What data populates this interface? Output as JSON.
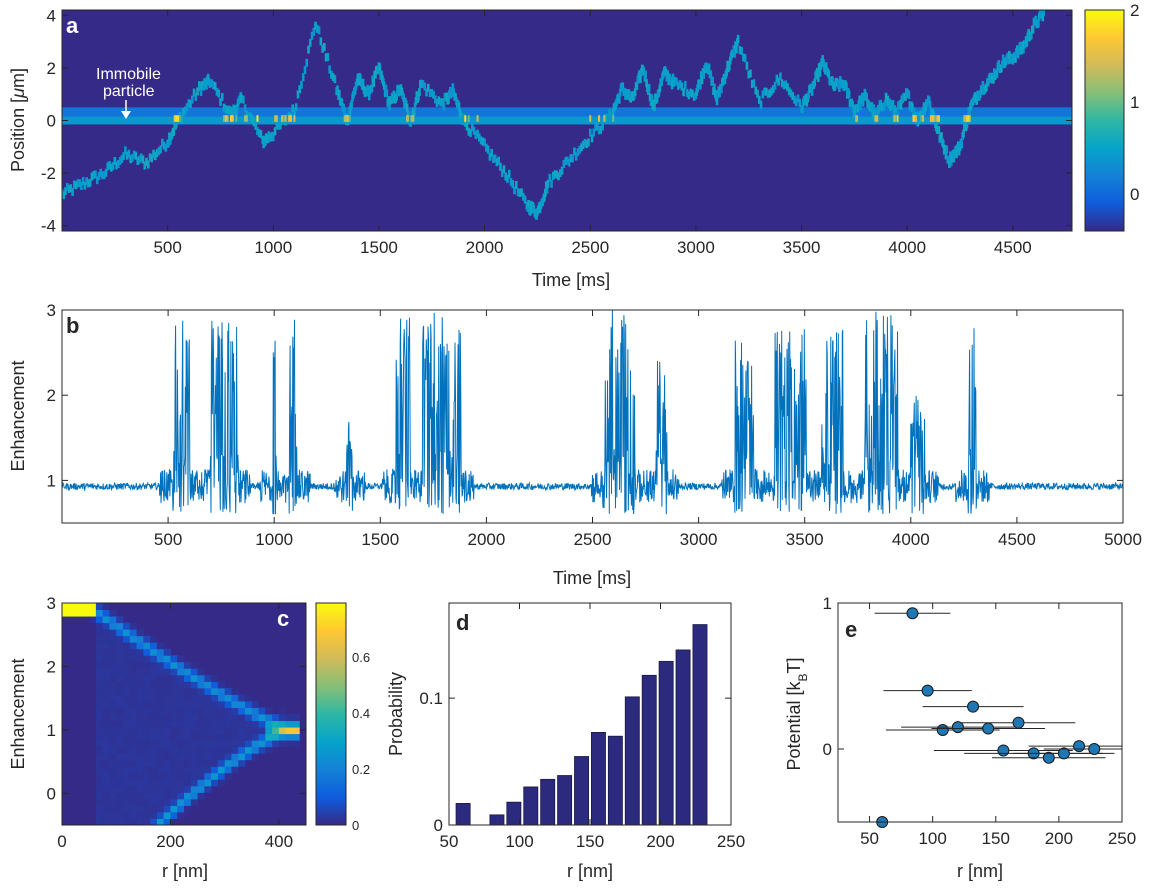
{
  "colors": {
    "background_low": "#352a87",
    "trace": "#0072bd",
    "marker": "#1f77b4",
    "bar": "#2c2a7e",
    "axis": "#262626",
    "colormap": [
      "#352a87",
      "#0f5cdd",
      "#1481d6",
      "#06a4ca",
      "#2eb7a4",
      "#87bf77",
      "#d1bb59",
      "#fec832",
      "#f9fb0e"
    ]
  },
  "panels": {
    "a": {
      "letter": "a",
      "ylabel_prefix": "Position [",
      "ylabel_mu": "μ",
      "ylabel_suffix": "m]",
      "xlabel": "Time [ms]",
      "annotation_line1": "Immobile",
      "annotation_line2": "particle",
      "colorbar_ticks": [
        "2",
        "1",
        "0"
      ]
    },
    "b": {
      "letter": "b",
      "ylabel": "Enhancement",
      "xlabel": "Time [ms]"
    },
    "c": {
      "letter": "c",
      "ylabel": "Enhancement",
      "xlabel": "r [nm]",
      "colorbar_ticks": [
        "0.6",
        "0.4",
        "0.2",
        "0"
      ]
    },
    "d": {
      "letter": "d",
      "ylabel": "Probability",
      "xlabel": "r [nm]"
    },
    "e": {
      "letter": "e",
      "ylabel_main": "Potential [k",
      "ylabel_sub": "B",
      "ylabel_end": "T]",
      "xlabel": "r [nm]"
    }
  },
  "chart_data": [
    {
      "panel": "a",
      "type": "heatmap",
      "xlabel": "Time [ms]",
      "ylabel": "Position [μm]",
      "xlim": [
        0,
        4780
      ],
      "ylim": [
        -4.2,
        4.2
      ],
      "xticks": [
        500,
        1000,
        1500,
        2000,
        2500,
        3000,
        3500,
        4000,
        4500
      ],
      "yticks": [
        -4,
        -2,
        0,
        2,
        4
      ],
      "colorbar_range": [
        -0.4,
        2
      ],
      "colorbar_ticks": [
        0,
        1,
        2
      ],
      "immobile_particle_position": 0,
      "trajectory": {
        "t": [
          0,
          100,
          200,
          300,
          400,
          500,
          550,
          650,
          700,
          800,
          850,
          950,
          1000,
          1100,
          1200,
          1300,
          1350,
          1400,
          1450,
          1500,
          1550,
          1600,
          1650,
          1700,
          1800,
          1850,
          1900,
          2000,
          2100,
          2200,
          2250,
          2300,
          2400,
          2500,
          2600,
          2650,
          2700,
          2750,
          2800,
          2850,
          2900,
          3000,
          3050,
          3100,
          3150,
          3200,
          3300,
          3400,
          3500,
          3550,
          3600,
          3650,
          3700,
          3750,
          3800,
          3850,
          3900,
          3950,
          4000,
          4050,
          4100,
          4150,
          4200,
          4250,
          4300,
          4350,
          4400,
          4450,
          4500,
          4550,
          4600,
          4650
        ],
        "position": [
          -2.8,
          -2.4,
          -2.0,
          -1.3,
          -1.6,
          -0.8,
          0,
          1.2,
          1.5,
          0.2,
          0.8,
          -0.8,
          -0.5,
          0.4,
          3.7,
          1.2,
          0,
          1.6,
          1.0,
          2.0,
          0.6,
          1.2,
          0,
          1.4,
          0.6,
          1.1,
          0,
          -1.0,
          -2.0,
          -3.2,
          -3.5,
          -2.4,
          -1.5,
          -0.6,
          0.2,
          1.2,
          0.8,
          2.0,
          0.5,
          1.8,
          1.4,
          1.0,
          2.2,
          0.8,
          2.0,
          3.0,
          0.7,
          1.6,
          0.5,
          1.2,
          2.2,
          1.3,
          1.4,
          0.4,
          0.9,
          0.2,
          0.8,
          0.3,
          1.0,
          0,
          0.8,
          -0.5,
          -1.5,
          -1.0,
          0.5,
          1.2,
          1.6,
          2.2,
          2.4,
          2.8,
          3.6,
          4.1
        ]
      }
    },
    {
      "panel": "b",
      "type": "line",
      "xlabel": "Time [ms]",
      "ylabel": "Enhancement",
      "xlim": [
        0,
        5000
      ],
      "ylim": [
        0.5,
        3
      ],
      "xticks": [
        500,
        1000,
        1500,
        2000,
        2500,
        3000,
        3500,
        4000,
        4500,
        5000
      ],
      "yticks": [
        1,
        2,
        3
      ],
      "baseline": 0.93,
      "bursts": [
        {
          "start": 520,
          "end": 600,
          "peak": 2.9
        },
        {
          "start": 700,
          "end": 830,
          "peak": 2.9
        },
        {
          "start": 990,
          "end": 1040,
          "peak": 3.0
        },
        {
          "start": 1070,
          "end": 1110,
          "peak": 3.0
        },
        {
          "start": 1340,
          "end": 1370,
          "peak": 1.8
        },
        {
          "start": 1570,
          "end": 1680,
          "peak": 3.0
        },
        {
          "start": 1700,
          "end": 1880,
          "peak": 3.0
        },
        {
          "start": 2550,
          "end": 2700,
          "peak": 3.0
        },
        {
          "start": 2800,
          "end": 2850,
          "peak": 2.5
        },
        {
          "start": 3170,
          "end": 3260,
          "peak": 2.7
        },
        {
          "start": 3360,
          "end": 3510,
          "peak": 2.8
        },
        {
          "start": 3580,
          "end": 3680,
          "peak": 2.8
        },
        {
          "start": 3780,
          "end": 3960,
          "peak": 3.0
        },
        {
          "start": 4000,
          "end": 4070,
          "peak": 2.2
        },
        {
          "start": 4270,
          "end": 4310,
          "peak": 3.0
        }
      ]
    },
    {
      "panel": "c",
      "type": "heatmap",
      "xlabel": "r [nm]",
      "ylabel": "Enhancement",
      "xlim": [
        0,
        450
      ],
      "ylim": [
        -0.5,
        3
      ],
      "xticks": [
        0,
        200,
        400
      ],
      "yticks": [
        0,
        1,
        2,
        3
      ],
      "colorbar_range": [
        0,
        0.78
      ],
      "colorbar_ticks": [
        0,
        0.2,
        0.4,
        0.6
      ]
    },
    {
      "panel": "d",
      "type": "bar",
      "xlabel": "r [nm]",
      "ylabel": "Probability",
      "xlim": [
        50,
        250
      ],
      "ylim": [
        0,
        0.175
      ],
      "xticks": [
        50,
        100,
        150,
        200,
        250
      ],
      "yticks": [
        0,
        0.1
      ],
      "x": [
        60,
        84,
        96,
        108,
        120,
        132,
        144,
        156,
        168,
        180,
        192,
        204,
        216,
        228
      ],
      "values": [
        0.017,
        0.008,
        0.018,
        0.03,
        0.036,
        0.039,
        0.054,
        0.073,
        0.07,
        0.101,
        0.118,
        0.129,
        0.138,
        0.158
      ]
    },
    {
      "panel": "e",
      "type": "scatter",
      "xlabel": "r [nm]",
      "ylabel": "Potential [kBT]",
      "xlim": [
        25,
        250
      ],
      "ylim": [
        -0.5,
        1
      ],
      "xticks": [
        50,
        100,
        150,
        200,
        250
      ],
      "yticks": [
        0,
        1
      ],
      "points": [
        {
          "x": 60,
          "y": -0.5,
          "xerr": 5
        },
        {
          "x": 84,
          "y": 0.93,
          "xerr": 30
        },
        {
          "x": 96,
          "y": 0.4,
          "xerr": 35
        },
        {
          "x": 108,
          "y": 0.13,
          "xerr": 45
        },
        {
          "x": 120,
          "y": 0.15,
          "xerr": 45
        },
        {
          "x": 132,
          "y": 0.29,
          "xerr": 40
        },
        {
          "x": 144,
          "y": 0.14,
          "xerr": 45
        },
        {
          "x": 156,
          "y": -0.01,
          "xerr": 55
        },
        {
          "x": 168,
          "y": 0.18,
          "xerr": 45
        },
        {
          "x": 180,
          "y": -0.03,
          "xerr": 55
        },
        {
          "x": 192,
          "y": -0.06,
          "xerr": 45
        },
        {
          "x": 204,
          "y": -0.03,
          "xerr": 40
        },
        {
          "x": 216,
          "y": 0.02,
          "xerr": 40
        },
        {
          "x": 228,
          "y": 0.0,
          "xerr": 40
        }
      ]
    }
  ]
}
